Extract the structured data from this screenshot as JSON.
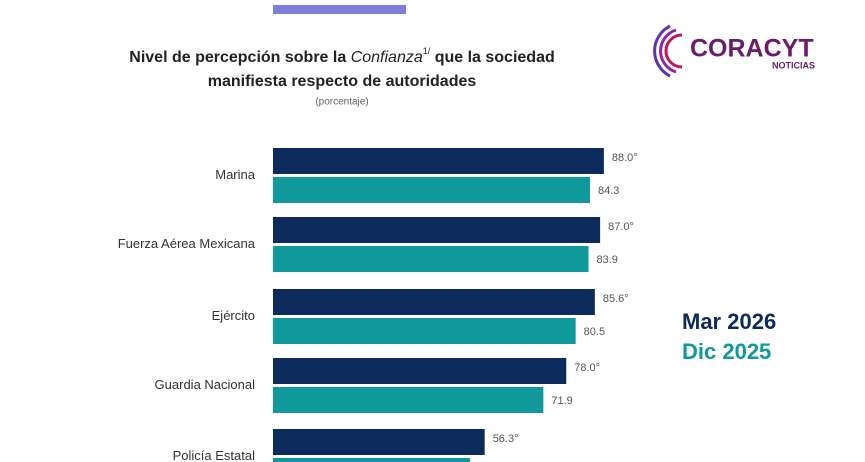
{
  "chart_data": {
    "type": "barh",
    "title_parts": [
      "Nivel de percepción sobre la ",
      "Confianza",
      "1/",
      " que la sociedad",
      "manifiesta respecto de autoridades"
    ],
    "subtitle": "(porcentaje)",
    "logo": {
      "name": "CORACYT",
      "tagline": "NOTICIAS"
    },
    "categories": [
      "Marina",
      "Fuerza Aérea Mexicana",
      "Ejército",
      "Guardia Nacional",
      "Policía Estatal"
    ],
    "series": [
      {
        "name": "Mar 2026",
        "color": "#0d2a5c",
        "values": [
          88.0,
          87.0,
          85.6,
          78.0,
          56.3
        ],
        "value_labels": [
          "88.0°",
          "87.0°",
          "85.6°",
          "78.0°",
          "56.3°"
        ]
      },
      {
        "name": "Dic 2025",
        "color": "#10999a",
        "values": [
          84.3,
          83.9,
          80.5,
          71.9,
          52.4
        ],
        "value_labels": [
          "84.3",
          "83.9",
          "80.5",
          "71.9",
          null
        ]
      }
    ],
    "legend": "right"
  }
}
